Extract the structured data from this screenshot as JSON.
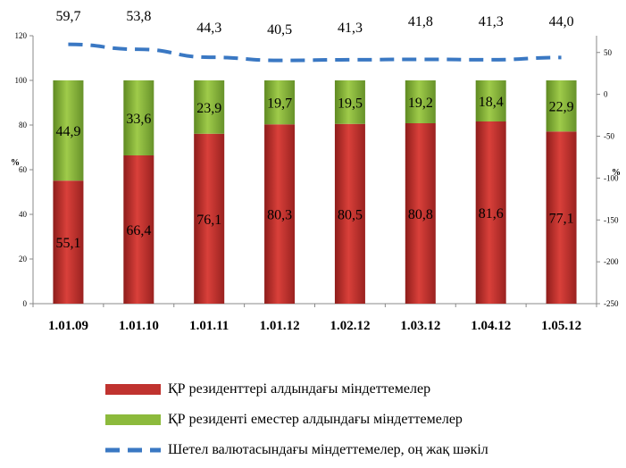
{
  "chart_data": {
    "type": "bar",
    "stacked": true,
    "categories": [
      "1.01.09",
      "1.01.10",
      "1.01.11",
      "1.01.12",
      "1.02.12",
      "1.03.12",
      "1.04.12",
      "1.05.12"
    ],
    "series": [
      {
        "name": "ҚР резиденттері алдындағы міндеттемелер",
        "type": "bar",
        "axis": "left",
        "color": "#c0332f",
        "values": [
          55.1,
          66.4,
          76.1,
          80.3,
          80.5,
          80.8,
          81.6,
          77.1
        ],
        "labels": [
          "55,1",
          "66,4",
          "76,1",
          "80,3",
          "80,5",
          "80,8",
          "81,6",
          "77,1"
        ]
      },
      {
        "name": "ҚР резиденті еместер алдындағы міндеттемелер",
        "type": "bar",
        "axis": "left",
        "color": "#8cba3c",
        "values": [
          44.9,
          33.6,
          23.9,
          19.7,
          19.5,
          19.2,
          18.4,
          22.9
        ],
        "labels": [
          "44,9",
          "33,6",
          "23,9",
          "19,7",
          "19,5",
          "19,2",
          "18,4",
          "22,9"
        ]
      },
      {
        "name": "Шетел валютасындағы міндеттемелер, оң жақ шәкіл",
        "type": "line",
        "axis": "right",
        "color": "#3a78c3",
        "dashed": true,
        "values": [
          59.7,
          53.8,
          44.3,
          40.5,
          41.3,
          41.8,
          41.3,
          44.0
        ],
        "labels": [
          "59,7",
          "53,8",
          "44,3",
          "40,5",
          "41,3",
          "41,8",
          "41,3",
          "44,0"
        ]
      }
    ],
    "ylabel_left": "%",
    "ylabel_right": "%",
    "ylim_left": [
      0,
      120
    ],
    "yticks_left": [
      "0",
      "20",
      "40",
      "60",
      "80",
      "100",
      "120"
    ],
    "ylim_right": [
      -250,
      70
    ],
    "yticks_right": [
      "-250",
      "-200",
      "-150",
      "-100",
      "-50",
      "0",
      "50"
    ],
    "grid": false,
    "legend_position": "bottom"
  }
}
